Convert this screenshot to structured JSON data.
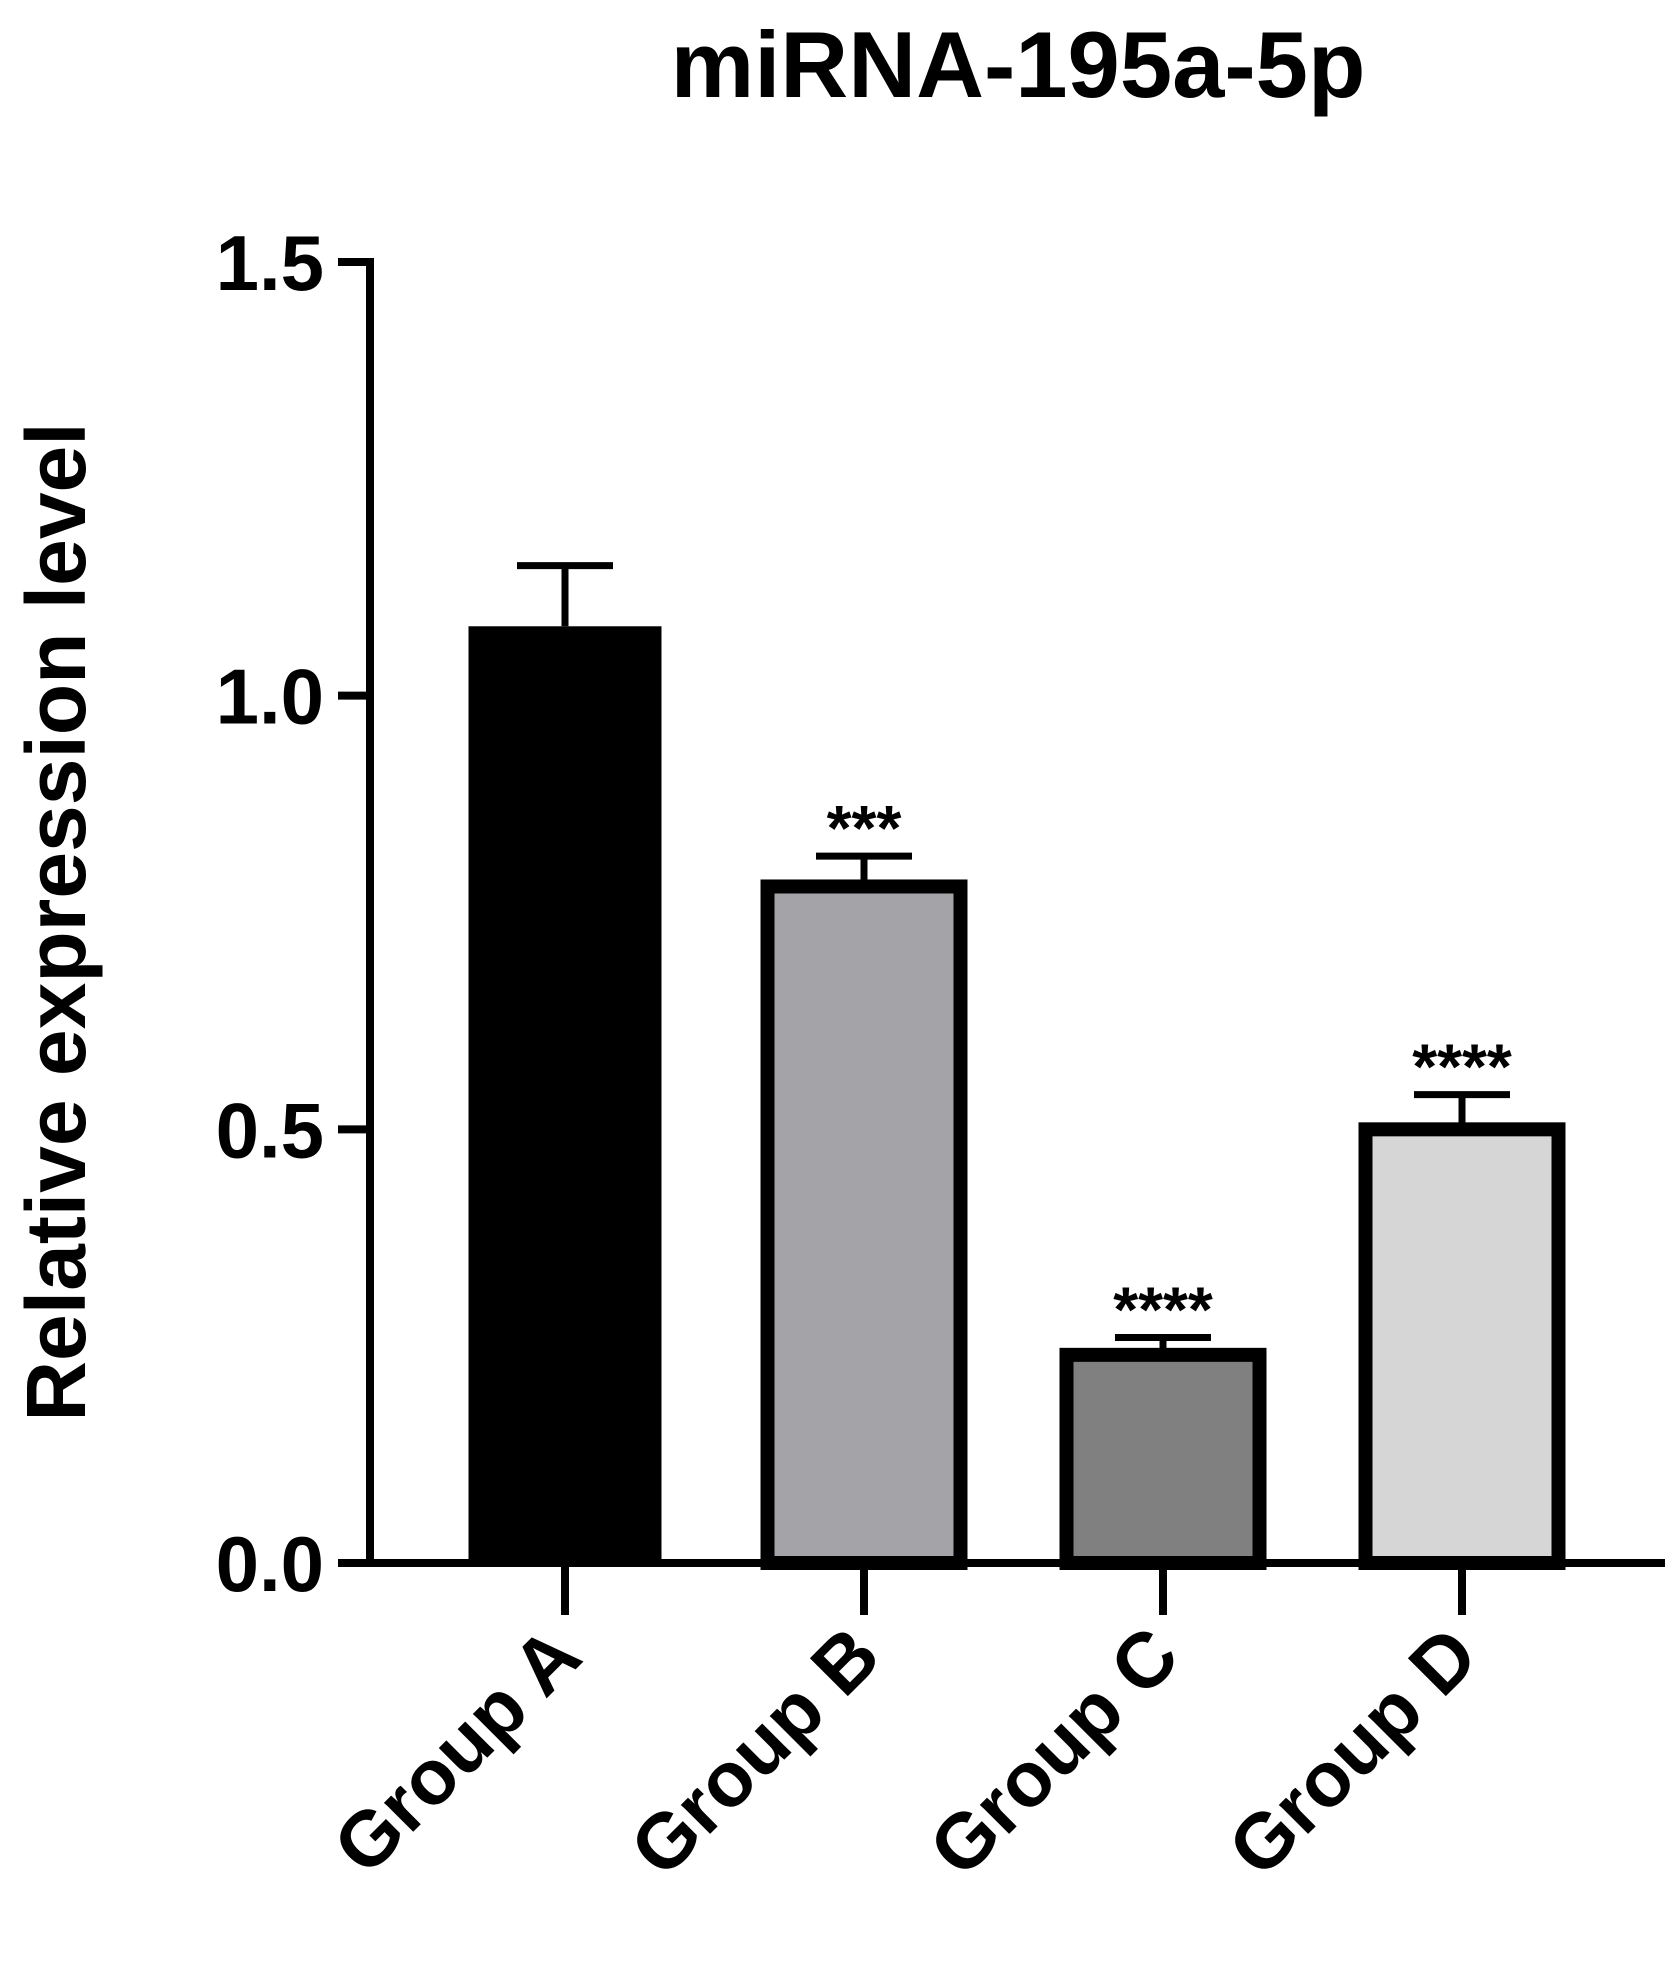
{
  "chart_data": {
    "type": "bar",
    "title": "miRNA-195a-5p",
    "xlabel": "",
    "ylabel": "Relative expression level",
    "ylim": [
      0,
      1.5
    ],
    "yticks": [
      "0.0",
      "0.5",
      "1.0",
      "1.5"
    ],
    "categories": [
      "Group A",
      "Group B",
      "Group C",
      "Group D"
    ],
    "values": [
      1.08,
      0.78,
      0.24,
      0.5
    ],
    "error_upper": [
      0.07,
      0.035,
      0.02,
      0.04
    ],
    "significance": [
      "",
      "***",
      "****",
      "****"
    ],
    "colors": [
      "#000000",
      "#a3a3a8",
      "#808080",
      "#d6d6d6"
    ],
    "grid": false,
    "legend": "none"
  }
}
